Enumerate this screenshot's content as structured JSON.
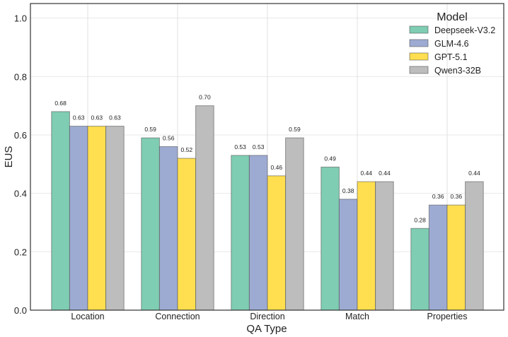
{
  "chart_data": {
    "type": "bar",
    "title": "",
    "xlabel": "QA Type",
    "ylabel": "EUS",
    "ylim": [
      0,
      1.05
    ],
    "yticks": [
      "0.0",
      "0.2",
      "0.4",
      "0.6",
      "0.8",
      "1.0"
    ],
    "grid": true,
    "categories": [
      "Location",
      "Connection",
      "Direction",
      "Match",
      "Properties"
    ],
    "legend": {
      "title": "Model",
      "placement": "top-right"
    },
    "series": [
      {
        "name": "Deepseek-V3.2",
        "color": "#7fcdb3",
        "values": [
          0.68,
          0.59,
          0.53,
          0.49,
          0.28
        ],
        "labels": [
          "0.68",
          "0.59",
          "0.53",
          "0.49",
          "0.28"
        ]
      },
      {
        "name": "GLM-4.6",
        "color": "#9dabd3",
        "values": [
          0.63,
          0.56,
          0.53,
          0.38,
          0.36
        ],
        "labels": [
          "0.63",
          "0.56",
          "0.53",
          "0.38",
          "0.36"
        ]
      },
      {
        "name": "GPT-5.1",
        "color": "#ffdf4f",
        "values": [
          0.63,
          0.52,
          0.46,
          0.44,
          0.36
        ],
        "labels": [
          "0.63",
          "0.52",
          "0.46",
          "0.44",
          "0.36"
        ]
      },
      {
        "name": "Qwen3-32B",
        "color": "#bdbdbd",
        "values": [
          0.63,
          0.7,
          0.59,
          0.44,
          0.44
        ],
        "labels": [
          "0.63",
          "0.70",
          "0.59",
          "0.44",
          "0.44"
        ]
      }
    ]
  }
}
